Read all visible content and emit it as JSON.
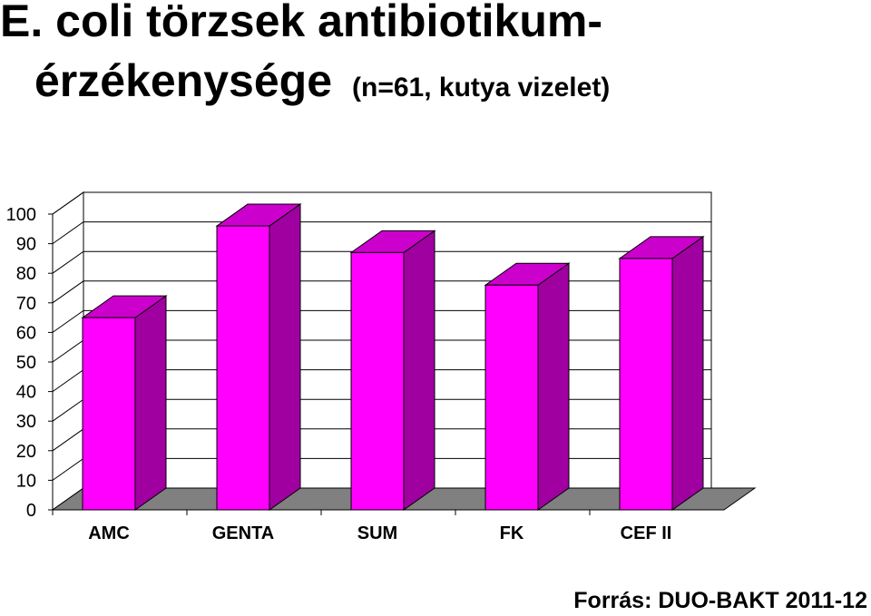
{
  "title": {
    "line1": "E. coli törzsek antibiotikum-",
    "line2_main": "érzékenysége",
    "line2_sub": "(n=61, kutya vizelet)"
  },
  "source": "Forrás: DUO-BAKT 2011-12",
  "colors": {
    "bar_front": "#ff00ff",
    "bar_side": "#a000a0",
    "bar_top": "#cc00cc",
    "floor": "#808080"
  },
  "chart_data": {
    "type": "bar",
    "categories": [
      "AMC",
      "GENTA",
      "SUM",
      "FK",
      "CEF II"
    ],
    "values": [
      65,
      96,
      87,
      76,
      85
    ],
    "ylim": [
      0,
      100
    ],
    "yticks": [
      "0",
      "10",
      "20",
      "30",
      "40",
      "50",
      "60",
      "70",
      "80",
      "90",
      "100"
    ],
    "grid": true,
    "style": "3d"
  }
}
